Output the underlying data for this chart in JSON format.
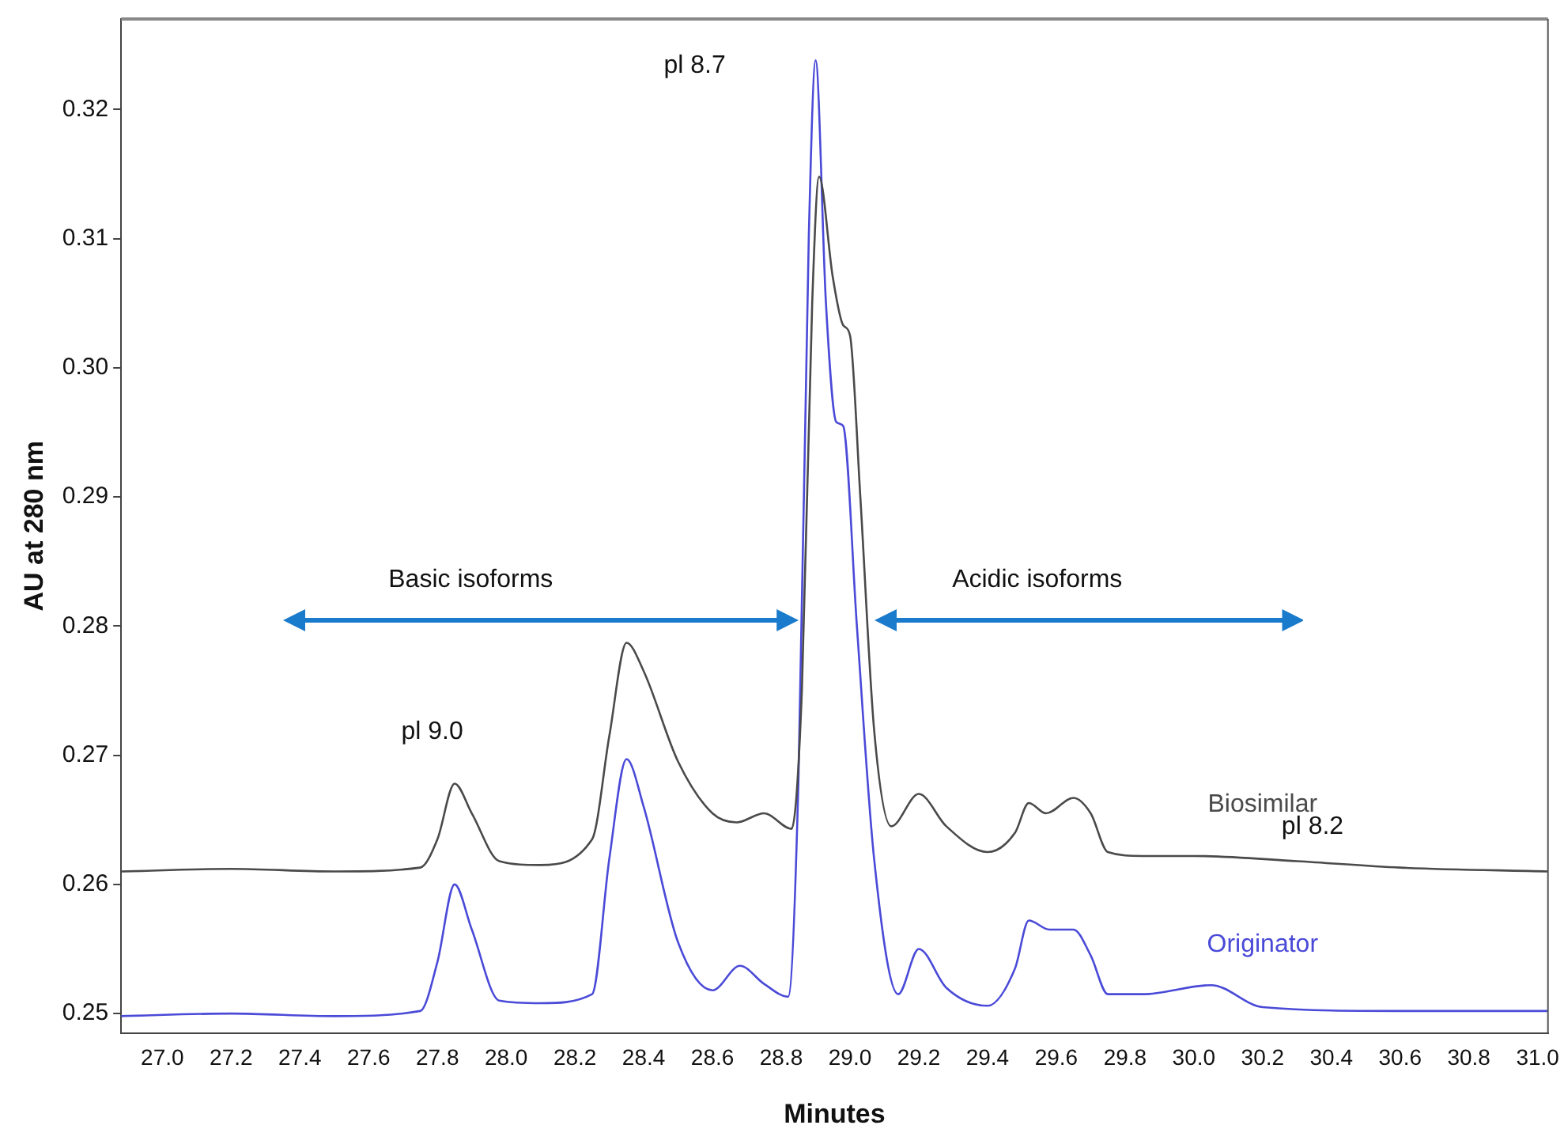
{
  "chart_data": {
    "type": "line",
    "xlabel": "Minutes",
    "ylabel": "AU at 280 nm",
    "xlim": [
      26.88,
      31.03
    ],
    "ylim": [
      0.2485,
      0.327
    ],
    "xticks": [
      {
        "value": 27,
        "label": "27.0"
      },
      {
        "value": 27.2,
        "label": "27.2"
      },
      {
        "value": 27.4,
        "label": "27.4"
      },
      {
        "value": 27.6,
        "label": "27.6"
      },
      {
        "value": 27.8,
        "label": "27.8"
      },
      {
        "value": 28,
        "label": "28.0"
      },
      {
        "value": 28.2,
        "label": "28.2"
      },
      {
        "value": 28.4,
        "label": "28.4"
      },
      {
        "value": 28.6,
        "label": "28.6"
      },
      {
        "value": 28.8,
        "label": "28.8"
      },
      {
        "value": 29,
        "label": "29.0"
      },
      {
        "value": 29.2,
        "label": "29.2"
      },
      {
        "value": 29.4,
        "label": "29.4"
      },
      {
        "value": 29.6,
        "label": "29.6"
      },
      {
        "value": 29.8,
        "label": "29.8"
      },
      {
        "value": 30,
        "label": "30.0"
      },
      {
        "value": 30.2,
        "label": "30.2"
      },
      {
        "value": 30.4,
        "label": "30.4"
      },
      {
        "value": 30.6,
        "label": "30.6"
      },
      {
        "value": 30.8,
        "label": "30.8"
      },
      {
        "value": 31,
        "label": "31.0"
      }
    ],
    "yticks": [
      {
        "value": 0.25,
        "label": "0.25"
      },
      {
        "value": 0.26,
        "label": "0.26"
      },
      {
        "value": 0.27,
        "label": "0.27"
      },
      {
        "value": 0.28,
        "label": "0.28"
      },
      {
        "value": 0.29,
        "label": "0.29"
      },
      {
        "value": 0.3,
        "label": "0.30"
      },
      {
        "value": 0.31,
        "label": "0.31"
      },
      {
        "value": 0.32,
        "label": "0.32"
      }
    ],
    "grid": false,
    "legend": false,
    "marker": "none",
    "line_style": "solid",
    "series": [
      {
        "name": "Biosimilar",
        "color": "#4a4a4a",
        "x": [
          26.88,
          27.2,
          27.5,
          27.75,
          27.8,
          27.85,
          27.9,
          27.98,
          28.1,
          28.25,
          28.3,
          28.35,
          28.4,
          28.5,
          28.6,
          28.67,
          28.75,
          28.83,
          28.86,
          28.89,
          28.91,
          28.95,
          28.98,
          29.0,
          29.03,
          29.07,
          29.12,
          29.2,
          29.28,
          29.4,
          29.48,
          29.52,
          29.57,
          29.65,
          29.7,
          29.75,
          29.85,
          30.0,
          30.3,
          30.6,
          31.03
        ],
        "values": [
          0.261,
          0.2612,
          0.261,
          0.2613,
          0.2635,
          0.2678,
          0.2655,
          0.2618,
          0.2615,
          0.2635,
          0.2715,
          0.2787,
          0.2765,
          0.2695,
          0.2655,
          0.2648,
          0.2655,
          0.2643,
          0.275,
          0.305,
          0.3148,
          0.307,
          0.3033,
          0.3025,
          0.29,
          0.272,
          0.2645,
          0.267,
          0.2645,
          0.2625,
          0.264,
          0.2663,
          0.2655,
          0.2667,
          0.2655,
          0.2625,
          0.2622,
          0.2622,
          0.2618,
          0.2613,
          0.261
        ]
      },
      {
        "name": "Originator",
        "color": "#4a4ad8",
        "x": [
          26.88,
          27.2,
          27.5,
          27.75,
          27.8,
          27.85,
          27.9,
          27.98,
          28.1,
          28.25,
          28.3,
          28.35,
          28.4,
          28.5,
          28.6,
          28.68,
          28.75,
          28.82,
          28.85,
          28.88,
          28.9,
          28.93,
          28.96,
          28.98,
          29.02,
          29.07,
          29.14,
          29.2,
          29.28,
          29.4,
          29.48,
          29.52,
          29.58,
          29.65,
          29.7,
          29.75,
          29.85,
          30.05,
          30.2,
          30.6,
          31.03
        ],
        "values": [
          0.2498,
          0.25,
          0.2498,
          0.2502,
          0.254,
          0.26,
          0.2565,
          0.251,
          0.2508,
          0.2515,
          0.262,
          0.2697,
          0.266,
          0.2555,
          0.2518,
          0.2537,
          0.2523,
          0.2513,
          0.268,
          0.31,
          0.3238,
          0.305,
          0.2958,
          0.2955,
          0.28,
          0.262,
          0.2515,
          0.255,
          0.252,
          0.2506,
          0.2535,
          0.2572,
          0.2565,
          0.2565,
          0.2545,
          0.2515,
          0.2515,
          0.2522,
          0.2505,
          0.2502,
          0.2502
        ]
      }
    ],
    "annotations": [
      "pl 8.7",
      "pl 9.0",
      "pl 8.2",
      "Basic isoforms",
      "Acidic isoforms"
    ]
  }
}
